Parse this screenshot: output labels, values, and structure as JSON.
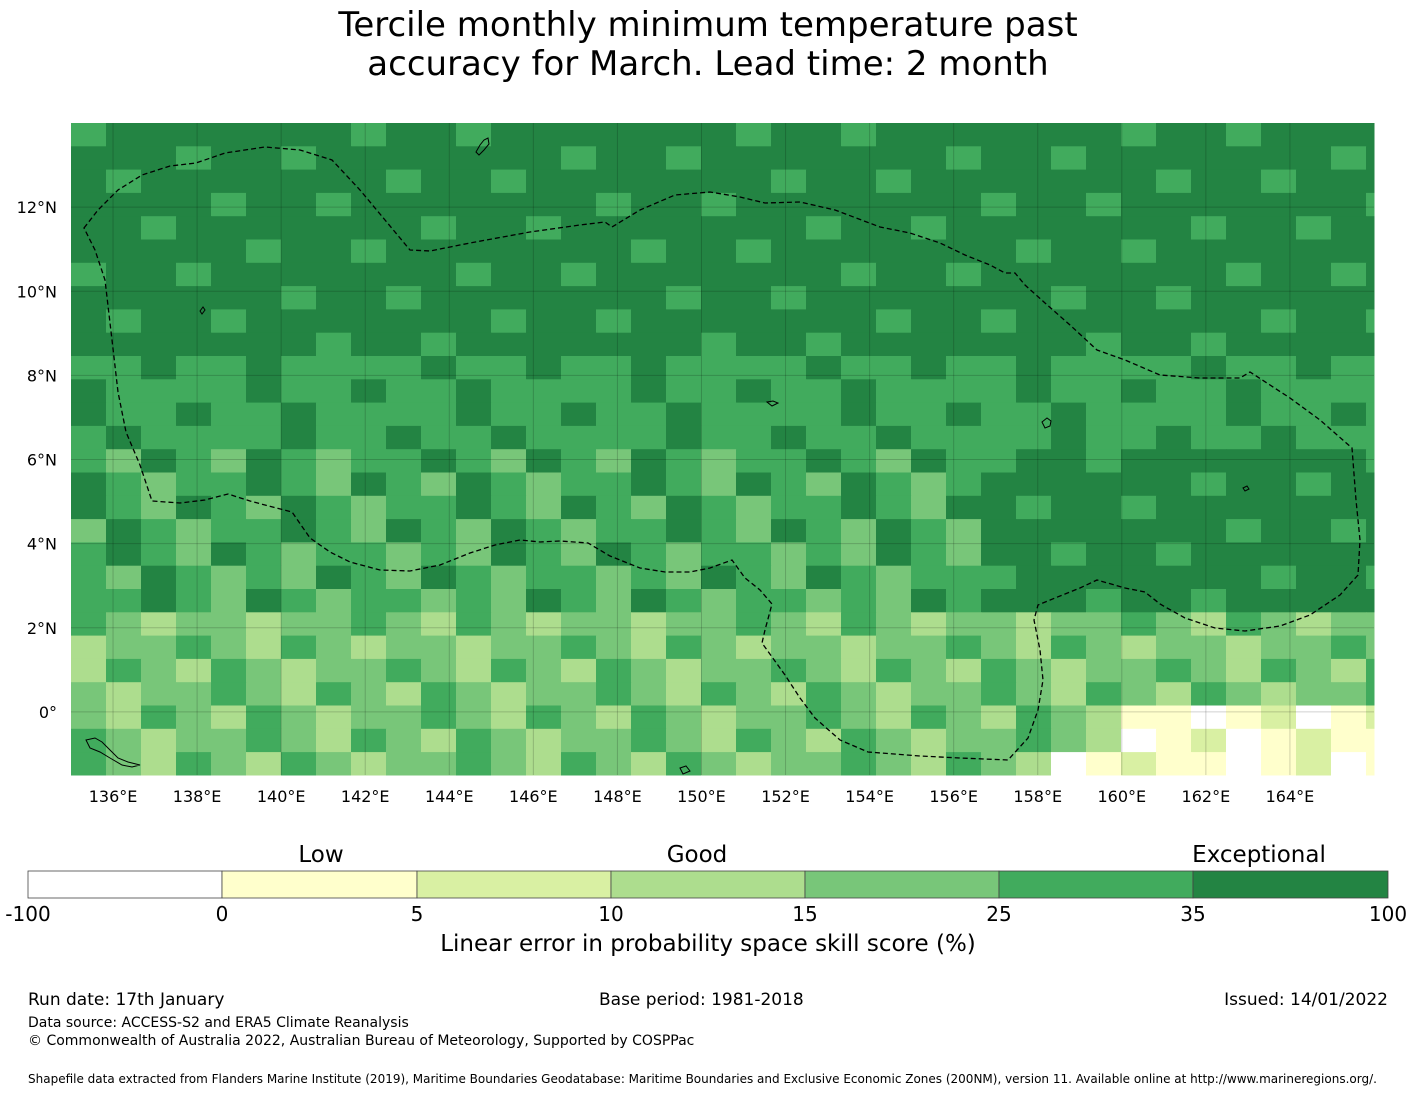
{
  "title_line1": "Tercile monthly minimum temperature past",
  "title_line2": "accuracy for March. Lead time: 2 month",
  "map": {
    "lon_range": [
      135,
      166
    ],
    "lat_range": [
      -1.5,
      14
    ],
    "lon_ticks": [
      "136°E",
      "138°E",
      "140°E",
      "142°E",
      "144°E",
      "146°E",
      "148°E",
      "150°E",
      "152°E",
      "154°E",
      "156°E",
      "158°E",
      "160°E",
      "162°E",
      "164°E"
    ],
    "lat_ticks": [
      "12°N",
      "10°N",
      "8°N",
      "6°N",
      "4°N",
      "2°N",
      "0°"
    ],
    "grid_summary": {
      "exceptional_region": "north of ~8°N across most longitudes, and 158°E–166°E between 3°N and 7°N",
      "low_region": "160°E–164°E between 1°S and 1°N",
      "good_region": "140°E–158°E south of 4°N"
    }
  },
  "colorbar": {
    "categories": [
      {
        "label": "Low"
      },
      {
        "label": "Good"
      },
      {
        "label": "Exceptional"
      }
    ],
    "ticks": [
      "-100",
      "0",
      "5",
      "10",
      "15",
      "25",
      "35",
      "100"
    ],
    "colors": [
      "#ffffff",
      "#ffffcc",
      "#d9f0a3",
      "#addd8e",
      "#78c679",
      "#41ab5d",
      "#238443"
    ],
    "label": "Linear error in probability space skill score (%)"
  },
  "footer": {
    "run_date": "Run date: 17th January",
    "base_period": "Base period: 1981-2018",
    "issued": "Issued: 14/01/2022",
    "data_source": "Data source: ACCESS-S2 and ERA5 Climate Reanalysis",
    "copyright": "© Commonwealth of Australia 2022, Australian Bureau of Meteorology, Supported by COSPPac",
    "shapefile": "Shapefile data extracted from Flanders Marine Institute (2019), Maritime Boundaries Geodatabase: Maritime Boundaries and Exclusive Economic Zones (200NM), version 11. Available online at http://www.marineregions.org/."
  }
}
